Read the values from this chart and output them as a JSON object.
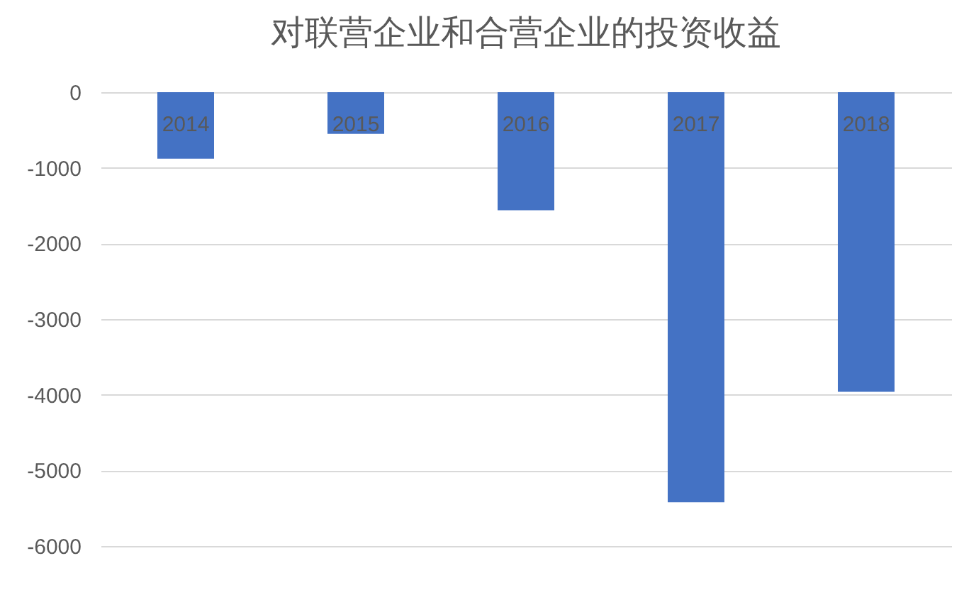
{
  "chart_data": {
    "type": "bar",
    "title": "对联营企业和合营企业的投资收益",
    "categories": [
      "2014",
      "2015",
      "2016",
      "2017",
      "2018"
    ],
    "values": [
      -880,
      -550,
      -1560,
      -5420,
      -3960
    ],
    "color": "#4472c4",
    "ylim": [
      -6000,
      0
    ],
    "yticks": [
      0,
      -1000,
      -2000,
      -3000,
      -4000,
      -5000,
      -6000
    ],
    "grid": "y"
  }
}
